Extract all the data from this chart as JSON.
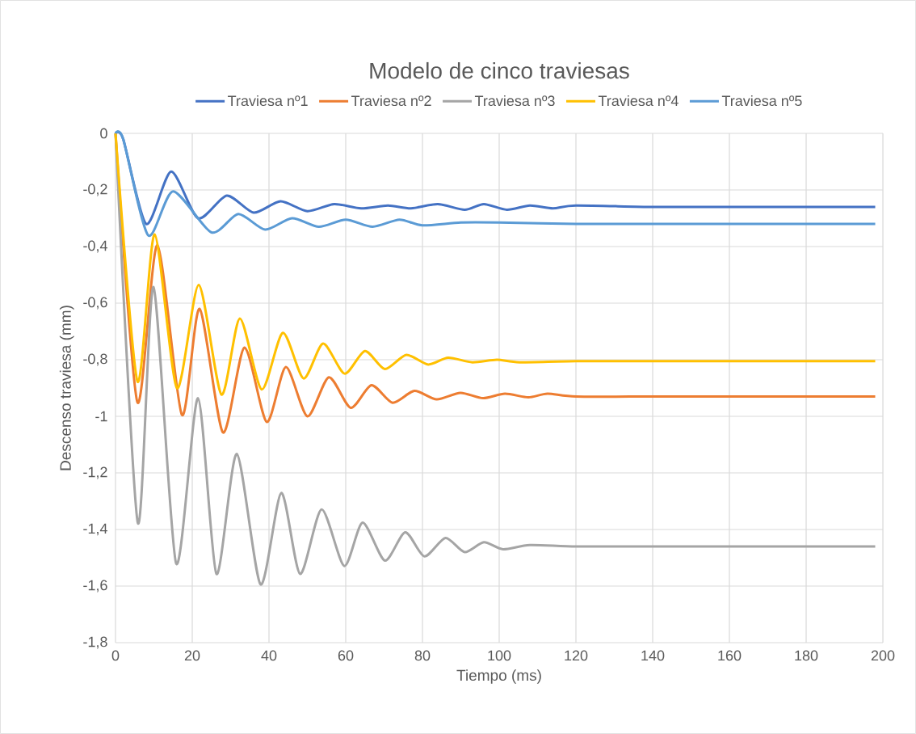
{
  "chart_data": {
    "type": "line",
    "title": "Modelo de cinco traviesas",
    "xlabel": "Tiempo (ms)",
    "ylabel": "Descenso traviesa (mm)",
    "xlim": [
      0,
      200
    ],
    "ylim": [
      -1.8,
      0
    ],
    "xticks": [
      0,
      20,
      40,
      60,
      80,
      100,
      120,
      140,
      160,
      180,
      200
    ],
    "yticks": [
      0,
      {
        "value": -0.2,
        "label": "-0,2"
      },
      {
        "value": -0.4,
        "label": "-0,4"
      },
      {
        "value": -0.6,
        "label": "-0,6"
      },
      {
        "value": -0.8,
        "label": "-0,8"
      },
      -1,
      {
        "value": -1.2,
        "label": "-1,2"
      },
      {
        "value": -1.4,
        "label": "-1,4"
      },
      {
        "value": -1.6,
        "label": "-1,6"
      },
      {
        "value": -1.8,
        "label": "-1,8"
      }
    ],
    "grid": true,
    "legend": "top",
    "marker": "none",
    "line_style": "solid",
    "series": [
      {
        "name": "Traviesa nº1",
        "color": "#4472c4",
        "x": [
          0,
          2,
          8,
          14.5,
          21.5,
          29,
          36,
          43,
          50,
          57,
          64,
          71,
          77,
          84,
          91,
          96,
          102,
          108,
          114,
          120,
          140,
          160,
          180,
          198
        ],
        "values": [
          0,
          -0.02,
          -0.32,
          -0.135,
          -0.3,
          -0.22,
          -0.28,
          -0.24,
          -0.275,
          -0.25,
          -0.265,
          -0.255,
          -0.265,
          -0.25,
          -0.27,
          -0.25,
          -0.27,
          -0.255,
          -0.265,
          -0.255,
          -0.26,
          -0.26,
          -0.26,
          -0.26
        ]
      },
      {
        "name": "Traviesa nº2",
        "color": "#ed7d31",
        "x": [
          0,
          5.7,
          10.9,
          17.3,
          21.9,
          28,
          33.6,
          39.4,
          44.4,
          50,
          55.6,
          61.3,
          66.7,
          72.2,
          77.9,
          83.7,
          89.9,
          95.8,
          101.5,
          107.6,
          112.6,
          120,
          140,
          160,
          180,
          198
        ],
        "values": [
          0,
          -0.95,
          -0.395,
          -0.995,
          -0.62,
          -1.057,
          -0.757,
          -1.02,
          -0.826,
          -1.0,
          -0.862,
          -0.97,
          -0.89,
          -0.952,
          -0.91,
          -0.94,
          -0.917,
          -0.936,
          -0.92,
          -0.933,
          -0.92,
          -0.93,
          -0.93,
          -0.93,
          -0.93,
          -0.93
        ]
      },
      {
        "name": "Traviesa nº3",
        "color": "#a5a5a5",
        "x": [
          0,
          5.8,
          9.9,
          15.8,
          21.5,
          26.3,
          31.6,
          37.8,
          43.2,
          48.1,
          53.7,
          59.6,
          64.4,
          70.2,
          75.5,
          80.5,
          86,
          91,
          96,
          101,
          108,
          120,
          140,
          160,
          180,
          198
        ],
        "values": [
          0,
          -1.376,
          -0.543,
          -1.52,
          -0.936,
          -1.557,
          -1.133,
          -1.594,
          -1.271,
          -1.557,
          -1.329,
          -1.529,
          -1.376,
          -1.51,
          -1.41,
          -1.495,
          -1.43,
          -1.48,
          -1.445,
          -1.47,
          -1.455,
          -1.46,
          -1.46,
          -1.46,
          -1.46,
          -1.46
        ]
      },
      {
        "name": "Traviesa nº4",
        "color": "#ffc000",
        "x": [
          0,
          5.7,
          10.2,
          16,
          21.7,
          27.6,
          32.4,
          38.1,
          43.6,
          49,
          54.1,
          59.7,
          65,
          70.2,
          75.8,
          81.5,
          86.7,
          93,
          99.4,
          105.3,
          120,
          140,
          160,
          180,
          198
        ],
        "values": [
          0,
          -0.876,
          -0.357,
          -0.9,
          -0.536,
          -0.923,
          -0.654,
          -0.905,
          -0.705,
          -0.866,
          -0.743,
          -0.849,
          -0.769,
          -0.833,
          -0.783,
          -0.817,
          -0.793,
          -0.809,
          -0.8,
          -0.809,
          -0.805,
          -0.805,
          -0.805,
          -0.805,
          -0.805
        ]
      },
      {
        "name": "Traviesa nº5",
        "color": "#5b9bd5",
        "x": [
          0,
          2,
          8.5,
          15,
          25,
          32,
          39,
          46,
          53,
          60,
          67,
          74,
          80,
          90,
          100,
          120,
          140,
          160,
          180,
          198
        ],
        "values": [
          0,
          -0.02,
          -0.36,
          -0.205,
          -0.35,
          -0.285,
          -0.34,
          -0.3,
          -0.33,
          -0.305,
          -0.33,
          -0.305,
          -0.325,
          -0.315,
          -0.315,
          -0.32,
          -0.32,
          -0.32,
          -0.32,
          -0.32
        ]
      }
    ]
  }
}
